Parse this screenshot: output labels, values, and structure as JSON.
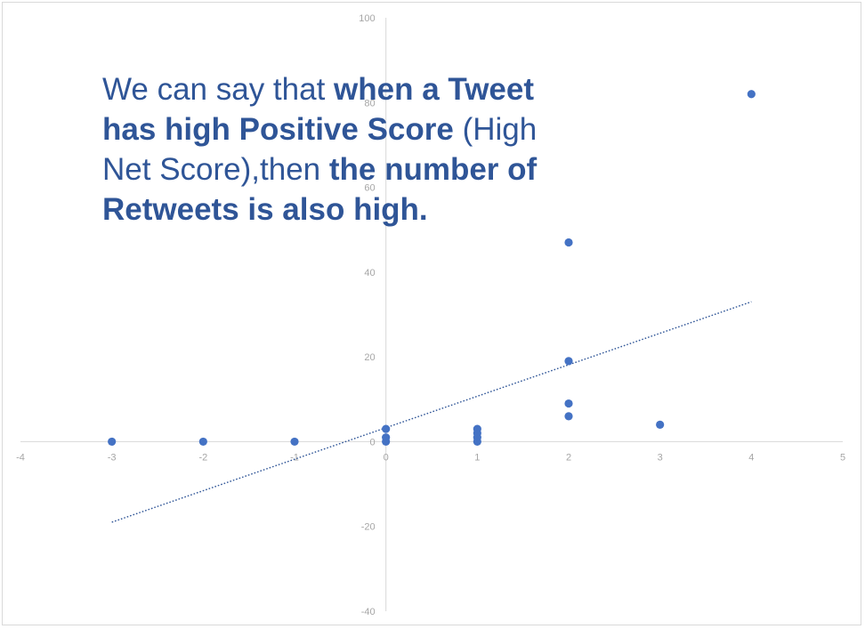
{
  "callout": {
    "normal_1": "We can say that ",
    "bold_1": "when a Tweet has high Positive Score",
    "normal_2": " (High Net Score),then ",
    "bold_2": "the number of Retweets is also high."
  },
  "colors": {
    "points": "#4472c4",
    "trendline": "#2f5597",
    "axis": "#d9d9d9",
    "ticks": "#a6a6a6",
    "text": "#2f5597"
  },
  "chart_data": {
    "type": "scatter",
    "title": "",
    "xlabel": "",
    "ylabel": "",
    "xlim": [
      -4,
      5
    ],
    "ylim": [
      -40,
      100
    ],
    "x_ticks": [
      -4,
      -3,
      -2,
      -1,
      0,
      1,
      2,
      3,
      4,
      5
    ],
    "y_ticks": [
      -40,
      -20,
      0,
      20,
      40,
      60,
      80,
      100
    ],
    "grid": false,
    "legend": "none",
    "series": [
      {
        "points": [
          [
            -3,
            0
          ],
          [
            -2,
            0
          ],
          [
            -1,
            0
          ],
          [
            0,
            0
          ],
          [
            0,
            1
          ],
          [
            0,
            3
          ],
          [
            1,
            0
          ],
          [
            1,
            1
          ],
          [
            1,
            2
          ],
          [
            1,
            3
          ],
          [
            2,
            6
          ],
          [
            2,
            9
          ],
          [
            2,
            19
          ],
          [
            2,
            47
          ],
          [
            3,
            4
          ],
          [
            4,
            82
          ]
        ]
      }
    ],
    "trendline": {
      "style": "dotted",
      "from": [
        -3,
        -19
      ],
      "to": [
        4,
        33
      ]
    }
  }
}
